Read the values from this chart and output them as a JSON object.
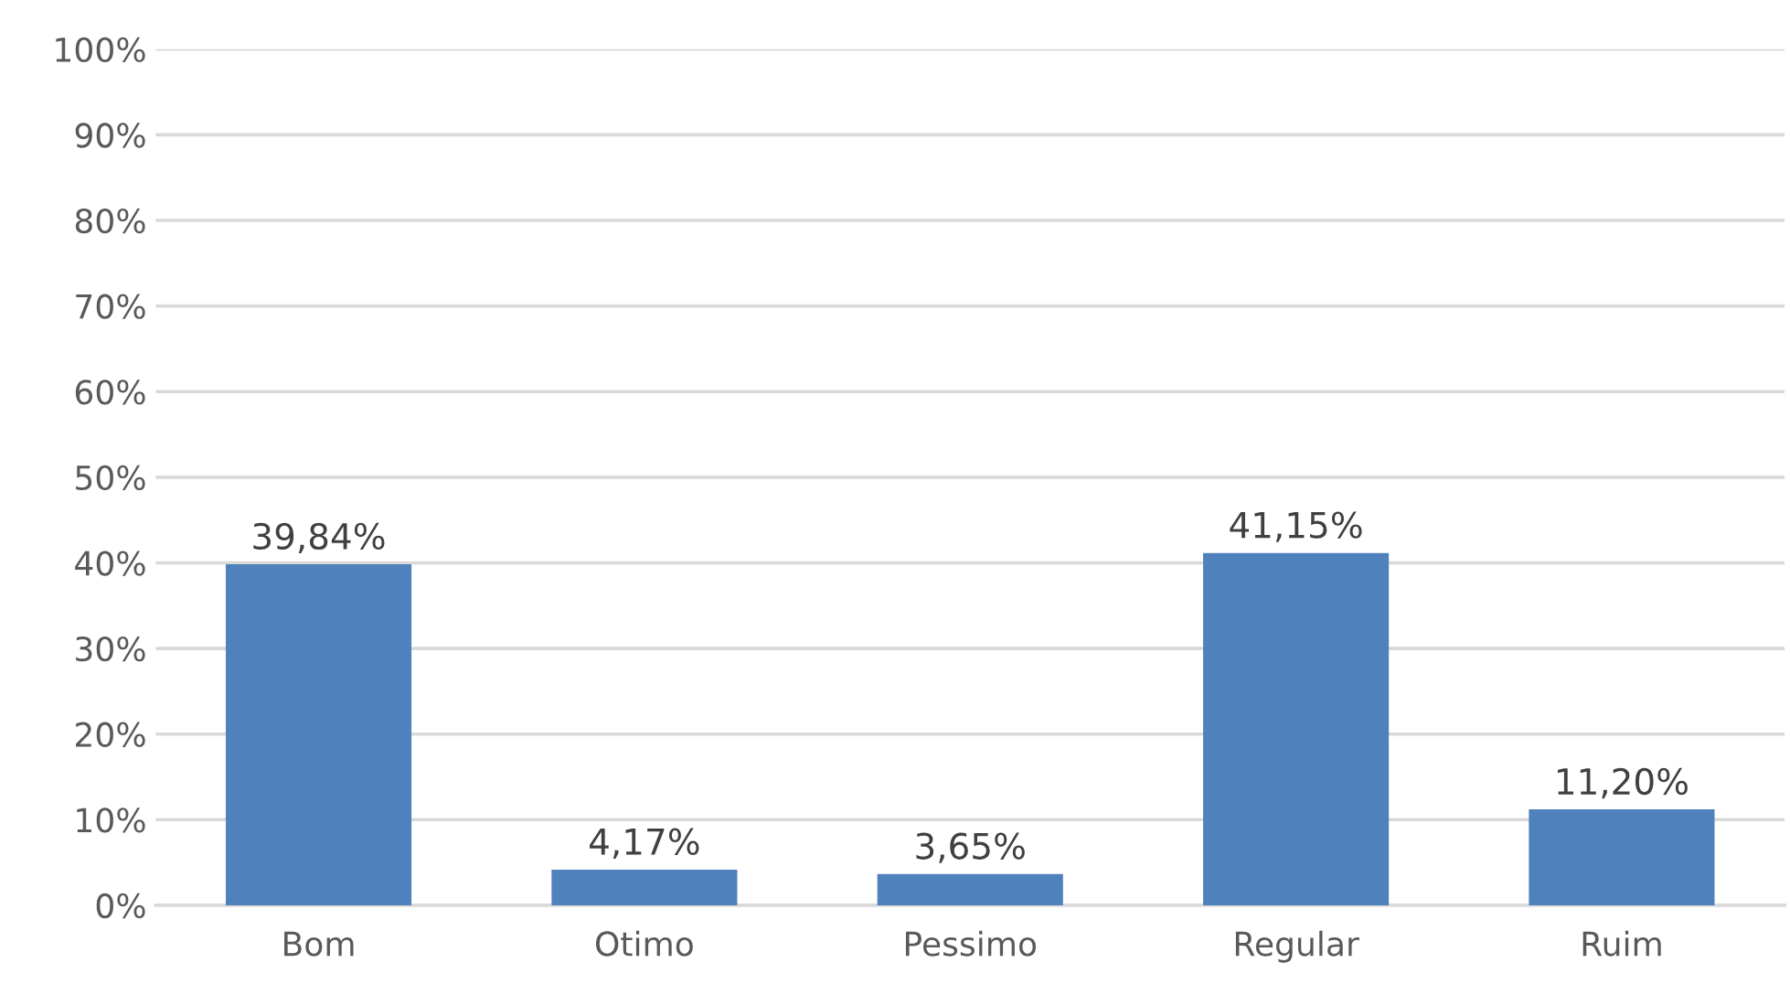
{
  "chart_data": {
    "type": "bar",
    "categories": [
      "Bom",
      "Otimo",
      "Pessimo",
      "Regular",
      "Ruim"
    ],
    "values": [
      39.84,
      4.17,
      3.65,
      41.15,
      11.2
    ],
    "value_labels": [
      "39,84%",
      "4,17%",
      "3,65%",
      "41,15%",
      "11,20%"
    ],
    "color": "#4f81bd",
    "ylim": [
      0,
      100
    ],
    "yticks": [
      {
        "value": 0,
        "label": "0%"
      },
      {
        "value": 10,
        "label": "10%"
      },
      {
        "value": 20,
        "label": "20%"
      },
      {
        "value": 30,
        "label": "30%"
      },
      {
        "value": 40,
        "label": "40%"
      },
      {
        "value": 50,
        "label": "50%"
      },
      {
        "value": 60,
        "label": "60%"
      },
      {
        "value": 70,
        "label": "70%"
      },
      {
        "value": 80,
        "label": "80%"
      },
      {
        "value": 90,
        "label": "90%"
      },
      {
        "value": 100,
        "label": "100%"
      }
    ],
    "grid": "y"
  }
}
